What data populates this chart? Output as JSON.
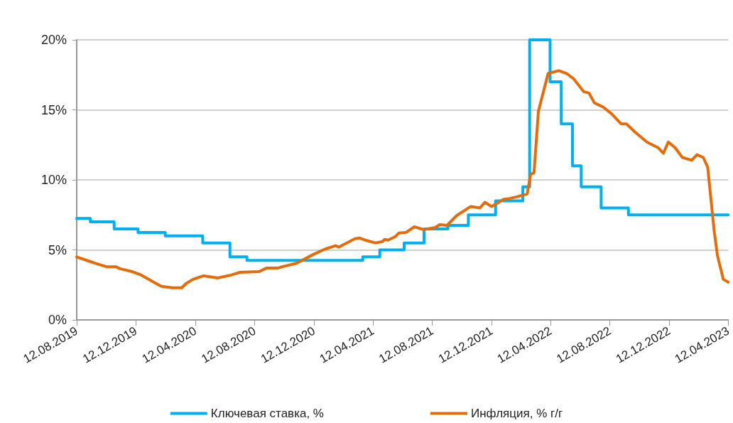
{
  "chart_data": {
    "type": "line",
    "xlim": [
      "2019-08-12",
      "2023-04-12"
    ],
    "xticks": [
      {
        "value": "2019-08-12",
        "label": "12.08.2019"
      },
      {
        "value": "2019-12-12",
        "label": "12.12.2019"
      },
      {
        "value": "2020-04-12",
        "label": "12.04.2020"
      },
      {
        "value": "2020-08-12",
        "label": "12.08.2020"
      },
      {
        "value": "2020-12-12",
        "label": "12.12.2020"
      },
      {
        "value": "2021-04-12",
        "label": "12.04.2021"
      },
      {
        "value": "2021-08-12",
        "label": "12.08.2021"
      },
      {
        "value": "2021-12-12",
        "label": "12.12.2021"
      },
      {
        "value": "2022-04-12",
        "label": "12.04.2022"
      },
      {
        "value": "2022-08-12",
        "label": "12.08.2022"
      },
      {
        "value": "2022-12-12",
        "label": "12.12.2022"
      },
      {
        "value": "2023-04-12",
        "label": "12.04.2023"
      }
    ],
    "ylim": [
      0,
      20
    ],
    "yticks": [
      {
        "value": 0,
        "label": "0%"
      },
      {
        "value": 5,
        "label": "5%"
      },
      {
        "value": 10,
        "label": "10%"
      },
      {
        "value": 15,
        "label": "15%"
      },
      {
        "value": 20,
        "label": "20%"
      }
    ],
    "grid": "y",
    "legend": "bottom",
    "marker": "none",
    "line_style": "solid",
    "series": [
      {
        "name": "Ключевая ставка, %",
        "type": "step",
        "color": "#00b0f0",
        "x": [
          "2019-08-12",
          "2019-09-09",
          "2019-10-28",
          "2019-12-16",
          "2020-02-10",
          "2020-04-27",
          "2020-06-22",
          "2020-07-27",
          "2021-03-22",
          "2021-04-26",
          "2021-06-15",
          "2021-07-26",
          "2021-09-13",
          "2021-10-25",
          "2021-12-20",
          "2022-02-14",
          "2022-02-28",
          "2022-04-11",
          "2022-05-04",
          "2022-05-27",
          "2022-06-14",
          "2022-07-25",
          "2022-09-19",
          "2023-04-12"
        ],
        "values": [
          7.25,
          7,
          6.5,
          6.25,
          6,
          5.5,
          4.5,
          4.25,
          4.5,
          5,
          5.5,
          6.5,
          6.75,
          7.5,
          8.5,
          9.5,
          20,
          17,
          14,
          11,
          9.5,
          8,
          7.5,
          7.5
        ]
      },
      {
        "name": "Инфляция, % г/г",
        "color": "#e46c0a",
        "x": [
          "2019-08-12",
          "2019-09-06",
          "2019-09-23",
          "2019-10-12",
          "2019-10-31",
          "2019-11-10",
          "2019-12-04",
          "2019-12-23",
          "2020-01-17",
          "2020-02-02",
          "2020-02-24",
          "2020-03-15",
          "2020-03-24",
          "2020-04-07",
          "2020-04-29",
          "2020-05-28",
          "2020-06-24",
          "2020-07-13",
          "2020-08-21",
          "2020-09-05",
          "2020-09-28",
          "2020-10-08",
          "2020-11-06",
          "2020-12-09",
          "2021-01-03",
          "2021-01-25",
          "2021-02-01",
          "2021-03-06",
          "2021-03-16",
          "2021-03-27",
          "2021-04-17",
          "2021-05-02",
          "2021-05-06",
          "2021-05-13",
          "2021-05-28",
          "2021-06-04",
          "2021-06-19",
          "2021-07-06",
          "2021-07-25",
          "2021-08-18",
          "2021-08-27",
          "2021-09-11",
          "2021-10-01",
          "2021-10-30",
          "2021-11-18",
          "2021-11-28",
          "2021-12-12",
          "2022-01-05",
          "2022-01-15",
          "2022-02-03",
          "2022-02-23",
          "2022-03-02",
          "2022-03-09",
          "2022-03-18",
          "2022-04-07",
          "2022-04-29",
          "2022-05-15",
          "2022-05-30",
          "2022-06-19",
          "2022-06-30",
          "2022-07-11",
          "2022-07-29",
          "2022-08-16",
          "2022-09-04",
          "2022-09-15",
          "2022-10-03",
          "2022-10-27",
          "2022-11-19",
          "2022-11-30",
          "2022-12-10",
          "2022-12-24",
          "2023-01-08",
          "2023-01-27",
          "2023-02-07",
          "2023-02-20",
          "2023-03-01",
          "2023-03-14",
          "2023-03-21",
          "2023-04-02",
          "2023-04-12"
        ],
        "values": [
          4.5,
          4.2,
          4.0,
          3.8,
          3.8,
          3.65,
          3.45,
          3.2,
          2.7,
          2.4,
          2.3,
          2.3,
          2.6,
          2.9,
          3.15,
          3.0,
          3.2,
          3.4,
          3.45,
          3.7,
          3.7,
          3.8,
          4.05,
          4.65,
          5.05,
          5.3,
          5.2,
          5.8,
          5.85,
          5.7,
          5.5,
          5.6,
          5.75,
          5.7,
          5.95,
          6.2,
          6.25,
          6.65,
          6.45,
          6.6,
          6.8,
          6.75,
          7.45,
          8.1,
          8.0,
          8.4,
          8.1,
          8.6,
          8.65,
          8.8,
          9.0,
          10.4,
          10.5,
          14.9,
          17.6,
          17.8,
          17.6,
          17.2,
          16.3,
          16.2,
          15.5,
          15.2,
          14.7,
          14.0,
          14.0,
          13.4,
          12.7,
          12.3,
          11.9,
          12.7,
          12.3,
          11.6,
          11.4,
          11.8,
          11.6,
          10.9,
          6.45,
          4.6,
          2.9,
          2.7
        ]
      }
    ]
  }
}
